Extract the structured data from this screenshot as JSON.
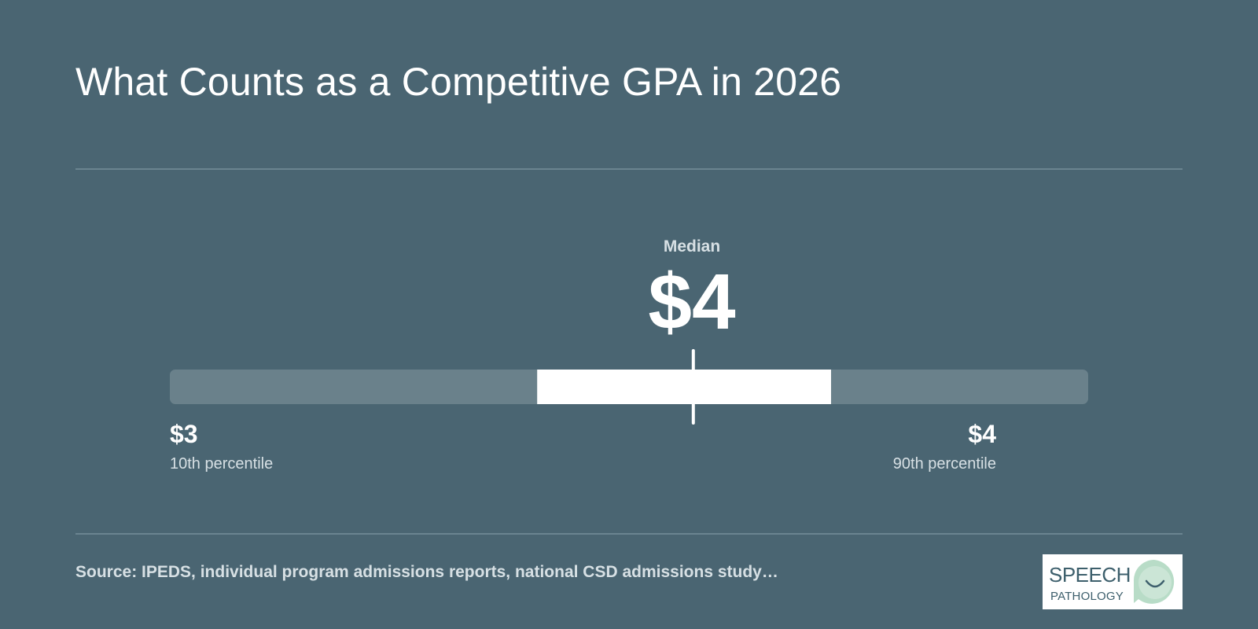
{
  "title": "What Counts as a Competitive GPA in 2026",
  "source": "Source: IPEDS, individual program admissions reports, national CSD admissions study…",
  "logo": {
    "line1": "SPEECH",
    "line2": "PATHOLOGY"
  },
  "colors": {
    "background": "#4a6572",
    "track": "#6a818b",
    "iqr_band": "#ffffff",
    "median_marker": "#ffffff",
    "divider": "#6a8490",
    "logo_accent": "#b8dcc7"
  },
  "chart_data": {
    "type": "range",
    "title": "What Counts as a Competitive GPA in 2026",
    "median": {
      "label": "Median",
      "display": "$4",
      "position": 0.57
    },
    "low": {
      "display": "$3",
      "caption": "10th percentile",
      "position": 0.0
    },
    "high": {
      "display": "$4",
      "caption": "90th percentile",
      "position": 0.9
    },
    "band": {
      "start": 0.4,
      "end": 0.72
    }
  }
}
